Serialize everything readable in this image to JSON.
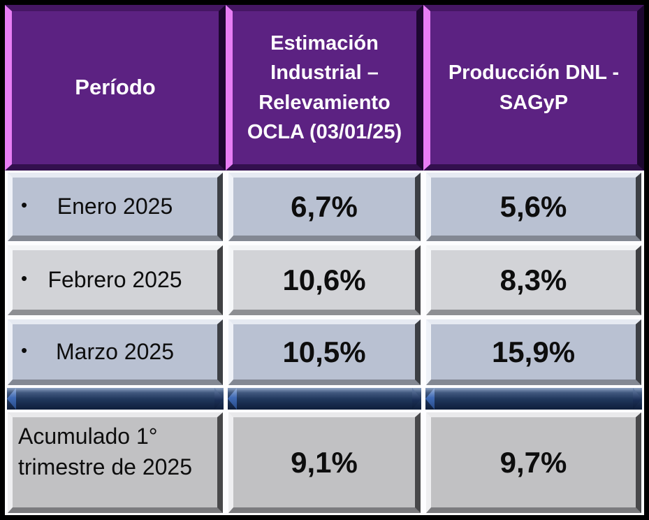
{
  "table": {
    "columns": [
      {
        "label": "Período"
      },
      {
        "label": "Estimación Industrial – Relevamiento OCLA (03/01/25)"
      },
      {
        "label": "Producción DNL - SAGyP"
      }
    ],
    "rows": [
      {
        "bullet": "•",
        "label": "Enero 2025",
        "ocla": "6,7%",
        "dnl": "5,6%"
      },
      {
        "bullet": "•",
        "label": "Febrero 2025",
        "ocla": "10,6%",
        "dnl": "8,3%"
      },
      {
        "bullet": "•",
        "label": "Marzo 2025",
        "ocla": "10,5%",
        "dnl": "15,9%"
      }
    ],
    "summary_row": {
      "label": "Acumulado 1° trimestre de 2025",
      "ocla": "9,1%",
      "dnl": "9,7%"
    }
  },
  "chart_data": {
    "type": "table",
    "title": "",
    "columns": [
      "Período",
      "Estimación Industrial – Relevamiento OCLA (03/01/25)",
      "Producción DNL - SAGyP"
    ],
    "rows": [
      [
        "Enero 2025",
        "6,7%",
        "5,6%"
      ],
      [
        "Febrero 2025",
        "10,6%",
        "8,3%"
      ],
      [
        "Marzo 2025",
        "10,5%",
        "15,9%"
      ],
      [
        "Acumulado 1° trimestre de 2025",
        "9,1%",
        "9,7%"
      ]
    ],
    "series": [
      {
        "name": "Estimación Industrial – Relevamiento OCLA (03/01/25)",
        "values": [
          6.7,
          10.6,
          10.5,
          9.1
        ]
      },
      {
        "name": "Producción DNL - SAGyP",
        "values": [
          5.6,
          8.3,
          15.9,
          9.7
        ]
      }
    ],
    "categories": [
      "Enero 2025",
      "Febrero 2025",
      "Marzo 2025",
      "Acumulado 1° trimestre de 2025"
    ],
    "unit": "%"
  },
  "colors": {
    "header_purple": "#5C2282",
    "header_bevel_pink": "#E87EF5",
    "row_blue_gray": "#B9C1D2",
    "row_neutral_gray": "#D2D3D7",
    "summary_gray": "#C1C1C3",
    "separator_navy": "#1C3154",
    "outer_border": "#000000",
    "header_text": "#FFFFFF",
    "body_text": "#0D0D0D"
  }
}
